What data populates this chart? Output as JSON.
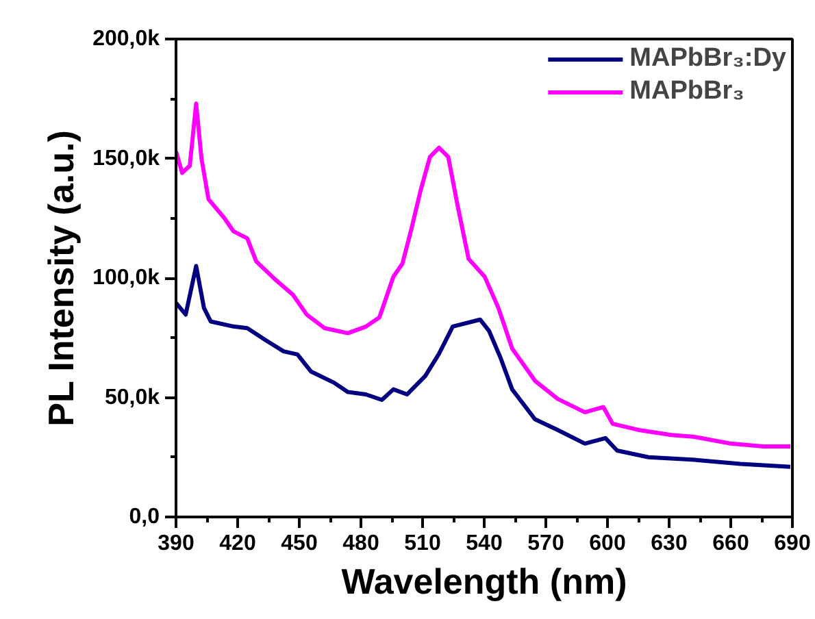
{
  "chart_data": {
    "type": "line",
    "xlabel": "Wavelength (nm)",
    "ylabel": "PL Intensity (a.u.)",
    "xlim": [
      390,
      690
    ],
    "xticks": [
      390,
      420,
      450,
      480,
      510,
      540,
      570,
      600,
      630,
      660,
      690
    ],
    "ylim": [
      0,
      200000
    ],
    "yticks": [
      {
        "value": 0,
        "label": "0,0"
      },
      {
        "value": 50000,
        "label": "50,0k"
      },
      {
        "value": 100000,
        "label": "100,0k"
      },
      {
        "value": 150000,
        "label": "150,0k"
      },
      {
        "value": 200000,
        "label": "200,0k"
      }
    ],
    "grid": false,
    "legend": "top right",
    "line_style": "solid",
    "marker": "none",
    "series": [
      {
        "name": "MAPbBr₃:Dy",
        "color": "#000080",
        "x": [
          390,
          394.7,
          399.8,
          403.6,
          406.9,
          418,
          424.7,
          433.6,
          442.4,
          449.1,
          455.8,
          466.9,
          473.6,
          482.4,
          490.2,
          495.8,
          502.5,
          511.3,
          518,
          524.7,
          538,
          542.4,
          548,
          553.6,
          564.7,
          575.8,
          589,
          599,
          604.7,
          620,
          642.5,
          664.7,
          689
        ],
        "values": [
          89600,
          84700,
          105000,
          87500,
          81800,
          79700,
          79000,
          74000,
          69300,
          68000,
          60800,
          56200,
          52300,
          51300,
          49000,
          53400,
          51300,
          59000,
          68300,
          79700,
          82600,
          77800,
          66500,
          53400,
          40900,
          36400,
          30700,
          33000,
          27800,
          25000,
          23900,
          22200,
          21000
        ]
      },
      {
        "name": "MAPbBr₃",
        "color": "#ff00ff",
        "x": [
          390,
          393,
          396.7,
          399.8,
          402.4,
          405.8,
          413.6,
          418,
          424.7,
          429,
          438,
          446.9,
          453.6,
          462.4,
          473.6,
          482.5,
          489,
          495.8,
          500.2,
          504.7,
          509,
          513.6,
          518,
          522.5,
          526.9,
          532.4,
          540.2,
          546.9,
          553.6,
          564.7,
          575.8,
          589,
          598,
          602.5,
          615.8,
          631,
          642.5,
          660,
          675.8,
          689
        ],
        "values": [
          153000,
          144000,
          147000,
          173000,
          150000,
          133000,
          125000,
          119500,
          116600,
          107000,
          99600,
          93000,
          84700,
          79000,
          76900,
          79700,
          83500,
          100600,
          106000,
          121000,
          136500,
          150700,
          154500,
          150700,
          131000,
          108000,
          100600,
          87500,
          70500,
          57000,
          49400,
          43800,
          46000,
          39000,
          36300,
          34300,
          33500,
          30700,
          29500,
          29500
        ]
      }
    ]
  }
}
